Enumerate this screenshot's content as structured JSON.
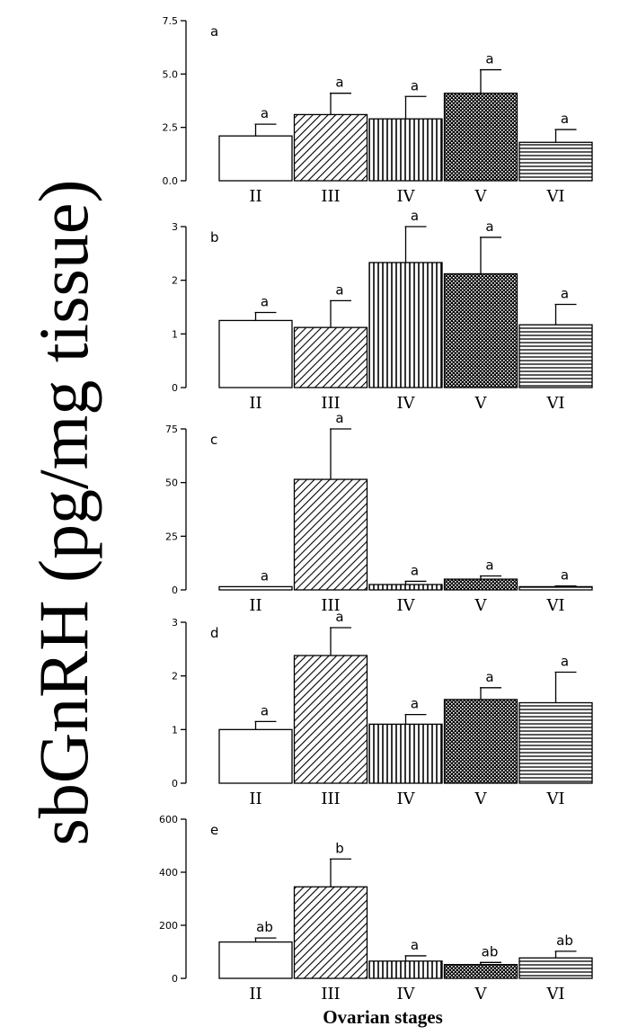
{
  "figure": {
    "ylabel": "sbGnRH (pg/mg tissue)",
    "xlabel": "Ovarian stages"
  },
  "chart_data": [
    {
      "type": "bar",
      "panel": "a",
      "categories": [
        "II",
        "III",
        "IV",
        "V",
        "VI"
      ],
      "values": [
        2.1,
        3.1,
        2.9,
        4.1,
        1.8
      ],
      "errors": [
        0.55,
        1.0,
        1.05,
        1.1,
        0.6
      ],
      "significance": [
        "a",
        "a",
        "a",
        "a",
        "a"
      ],
      "ylim": [
        0,
        7.5
      ],
      "yticks": [
        "0.0",
        "2.5",
        "5.0",
        "7.5"
      ]
    },
    {
      "type": "bar",
      "panel": "b",
      "categories": [
        "II",
        "III",
        "IV",
        "V",
        "VI"
      ],
      "values": [
        1.25,
        1.12,
        2.33,
        2.12,
        1.17
      ],
      "errors": [
        0.15,
        0.5,
        0.67,
        0.68,
        0.38
      ],
      "significance": [
        "a",
        "a",
        "a",
        "a",
        "a"
      ],
      "ylim": [
        0,
        3
      ],
      "yticks": [
        "0",
        "1",
        "2",
        "3"
      ]
    },
    {
      "type": "bar",
      "panel": "c",
      "categories": [
        "II",
        "III",
        "IV",
        "V",
        "VI"
      ],
      "values": [
        1.5,
        51.5,
        2.5,
        5.0,
        1.5
      ],
      "errors": [
        0,
        23.5,
        1.5,
        1.5,
        0.3
      ],
      "significance": [
        "a",
        "a",
        "a",
        "a",
        "a"
      ],
      "ylim": [
        0,
        75
      ],
      "yticks": [
        "0",
        "25",
        "50",
        "75"
      ]
    },
    {
      "type": "bar",
      "panel": "d",
      "categories": [
        "II",
        "III",
        "IV",
        "V",
        "VI"
      ],
      "values": [
        1.0,
        2.38,
        1.1,
        1.56,
        1.5
      ],
      "errors": [
        0.15,
        0.52,
        0.18,
        0.22,
        0.57
      ],
      "significance": [
        "a",
        "a",
        "a",
        "a",
        "a"
      ],
      "ylim": [
        0,
        3
      ],
      "yticks": [
        "0",
        "1",
        "2",
        "3"
      ]
    },
    {
      "type": "bar",
      "panel": "e",
      "categories": [
        "II",
        "III",
        "IV",
        "V",
        "VI"
      ],
      "values": [
        137,
        345,
        65,
        52,
        77
      ],
      "errors": [
        15,
        105,
        20,
        8,
        25
      ],
      "significance": [
        "ab",
        "b",
        "a",
        "ab",
        "ab"
      ],
      "ylim": [
        0,
        600
      ],
      "yticks": [
        "0",
        "200",
        "400",
        "600"
      ]
    }
  ]
}
